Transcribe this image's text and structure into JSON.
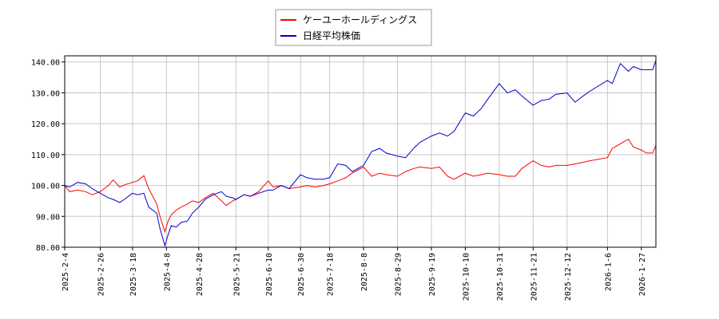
{
  "chart_data": {
    "type": "line",
    "title": "",
    "xlabel": "",
    "ylabel": "",
    "ylim": [
      80,
      142
    ],
    "grid": true,
    "legend_position": "top-center",
    "x_tick_labels": [
      "2025-2-4",
      "2025-2-26",
      "2025-3-18",
      "2025-4-8",
      "2025-4-28",
      "2025-5-21",
      "2025-6-10",
      "2025-6-30",
      "2025-7-18",
      "2025-8-8",
      "2025-8-29",
      "2025-9-19",
      "2025-10-10",
      "2025-10-31",
      "2025-11-21",
      "2025-12-12",
      "2026-1-6",
      "2026-1-27"
    ],
    "y_ticks": [
      80,
      90,
      100,
      110,
      120,
      130,
      140
    ],
    "y_tick_labels": [
      "80.00",
      "90.00",
      "100.00",
      "110.00",
      "120.00",
      "130.00",
      "140.00"
    ],
    "series": [
      {
        "name": "ケーユーホールディングス",
        "color": "#ff0000",
        "points": [
          [
            "2025-2-4",
            100.0
          ],
          [
            "2025-2-7",
            98.0
          ],
          [
            "2025-2-12",
            98.5
          ],
          [
            "2025-2-17",
            98.0
          ],
          [
            "2025-2-21",
            97.0
          ],
          [
            "2025-2-26",
            98.0
          ],
          [
            "2025-3-3",
            100.0
          ],
          [
            "2025-3-6",
            101.8
          ],
          [
            "2025-3-10",
            99.5
          ],
          [
            "2025-3-13",
            100.2
          ],
          [
            "2025-3-18",
            101.0
          ],
          [
            "2025-3-21",
            101.5
          ],
          [
            "2025-3-25",
            103.2
          ],
          [
            "2025-3-28",
            99.0
          ],
          [
            "2025-4-2",
            94.0
          ],
          [
            "2025-4-4",
            90.0
          ],
          [
            "2025-4-7",
            85.0
          ],
          [
            "2025-4-9",
            88.5
          ],
          [
            "2025-4-11",
            90.5
          ],
          [
            "2025-4-14",
            92.0
          ],
          [
            "2025-4-17",
            93.0
          ],
          [
            "2025-4-21",
            94.0
          ],
          [
            "2025-4-24",
            95.0
          ],
          [
            "2025-4-28",
            94.5
          ],
          [
            "2025-5-2",
            96.0
          ],
          [
            "2025-5-7",
            97.5
          ],
          [
            "2025-5-12",
            95.0
          ],
          [
            "2025-5-15",
            93.5
          ],
          [
            "2025-5-19",
            95.0
          ],
          [
            "2025-5-21",
            95.5
          ],
          [
            "2025-5-26",
            97.0
          ],
          [
            "2025-5-30",
            96.5
          ],
          [
            "2025-6-4",
            98.0
          ],
          [
            "2025-6-10",
            101.5
          ],
          [
            "2025-6-13",
            99.5
          ],
          [
            "2025-6-18",
            100.0
          ],
          [
            "2025-6-23",
            99.0
          ],
          [
            "2025-6-30",
            99.5
          ],
          [
            "2025-7-4",
            100.0
          ],
          [
            "2025-7-9",
            99.5
          ],
          [
            "2025-7-14",
            100.0
          ],
          [
            "2025-7-18",
            100.5
          ],
          [
            "2025-7-23",
            101.5
          ],
          [
            "2025-7-28",
            102.5
          ],
          [
            "2025-8-1",
            104.0
          ],
          [
            "2025-8-8",
            106.0
          ],
          [
            "2025-8-13",
            103.0
          ],
          [
            "2025-8-18",
            104.0
          ],
          [
            "2025-8-22",
            103.5
          ],
          [
            "2025-8-29",
            103.0
          ],
          [
            "2025-9-3",
            104.5
          ],
          [
            "2025-9-8",
            105.5
          ],
          [
            "2025-9-12",
            106.0
          ],
          [
            "2025-9-19",
            105.5
          ],
          [
            "2025-9-24",
            106.0
          ],
          [
            "2025-9-29",
            103.0
          ],
          [
            "2025-10-3",
            102.0
          ],
          [
            "2025-10-10",
            104.0
          ],
          [
            "2025-10-15",
            103.0
          ],
          [
            "2025-10-20",
            103.5
          ],
          [
            "2025-10-24",
            104.0
          ],
          [
            "2025-10-31",
            103.5
          ],
          [
            "2025-11-5",
            103.0
          ],
          [
            "2025-11-10",
            103.0
          ],
          [
            "2025-11-14",
            105.5
          ],
          [
            "2025-11-21",
            108.0
          ],
          [
            "2025-11-26",
            106.5
          ],
          [
            "2025-12-1",
            106.0
          ],
          [
            "2025-12-5",
            106.5
          ],
          [
            "2025-12-12",
            106.5
          ],
          [
            "2025-12-17",
            107.0
          ],
          [
            "2025-12-22",
            107.5
          ],
          [
            "2025-12-26",
            108.0
          ],
          [
            "2026-1-6",
            109.0
          ],
          [
            "2026-1-9",
            112.0
          ],
          [
            "2026-1-14",
            113.5
          ],
          [
            "2026-1-19",
            115.0
          ],
          [
            "2026-1-22",
            112.5
          ],
          [
            "2026-1-27",
            111.5
          ],
          [
            "2026-1-30",
            110.5
          ],
          [
            "2026-2-3",
            110.5
          ],
          [
            "2026-2-5",
            113.0
          ]
        ]
      },
      {
        "name": "日経平均株価",
        "color": "#0000cc",
        "points": [
          [
            "2025-2-4",
            100.0
          ],
          [
            "2025-2-7",
            99.5
          ],
          [
            "2025-2-12",
            101.0
          ],
          [
            "2025-2-17",
            100.5
          ],
          [
            "2025-2-21",
            99.0
          ],
          [
            "2025-2-26",
            97.5
          ],
          [
            "2025-3-3",
            96.0
          ],
          [
            "2025-3-6",
            95.5
          ],
          [
            "2025-3-10",
            94.5
          ],
          [
            "2025-3-13",
            95.5
          ],
          [
            "2025-3-18",
            97.5
          ],
          [
            "2025-3-21",
            97.0
          ],
          [
            "2025-3-25",
            97.5
          ],
          [
            "2025-3-28",
            93.0
          ],
          [
            "2025-4-2",
            91.0
          ],
          [
            "2025-4-4",
            86.0
          ],
          [
            "2025-4-7",
            80.5
          ],
          [
            "2025-4-9",
            84.0
          ],
          [
            "2025-4-11",
            87.0
          ],
          [
            "2025-4-14",
            86.5
          ],
          [
            "2025-4-17",
            88.0
          ],
          [
            "2025-4-21",
            88.5
          ],
          [
            "2025-4-24",
            91.0
          ],
          [
            "2025-4-28",
            93.0
          ],
          [
            "2025-5-2",
            95.5
          ],
          [
            "2025-5-7",
            97.0
          ],
          [
            "2025-5-12",
            98.0
          ],
          [
            "2025-5-15",
            96.5
          ],
          [
            "2025-5-19",
            96.0
          ],
          [
            "2025-5-21",
            95.5
          ],
          [
            "2025-5-26",
            97.0
          ],
          [
            "2025-5-30",
            96.5
          ],
          [
            "2025-6-4",
            97.5
          ],
          [
            "2025-6-10",
            98.5
          ],
          [
            "2025-6-13",
            98.5
          ],
          [
            "2025-6-18",
            100.0
          ],
          [
            "2025-6-23",
            99.0
          ],
          [
            "2025-6-30",
            103.5
          ],
          [
            "2025-7-4",
            102.5
          ],
          [
            "2025-7-9",
            102.0
          ],
          [
            "2025-7-14",
            102.0
          ],
          [
            "2025-7-18",
            102.5
          ],
          [
            "2025-7-23",
            107.0
          ],
          [
            "2025-7-28",
            106.5
          ],
          [
            "2025-8-1",
            104.5
          ],
          [
            "2025-8-8",
            106.5
          ],
          [
            "2025-8-13",
            111.0
          ],
          [
            "2025-8-18",
            112.0
          ],
          [
            "2025-8-22",
            110.5
          ],
          [
            "2025-8-29",
            109.5
          ],
          [
            "2025-9-3",
            109.0
          ],
          [
            "2025-9-8",
            112.0
          ],
          [
            "2025-9-12",
            114.0
          ],
          [
            "2025-9-19",
            116.0
          ],
          [
            "2025-9-24",
            117.0
          ],
          [
            "2025-9-29",
            116.0
          ],
          [
            "2025-10-3",
            117.5
          ],
          [
            "2025-10-10",
            123.5
          ],
          [
            "2025-10-15",
            122.5
          ],
          [
            "2025-10-20",
            125.0
          ],
          [
            "2025-10-24",
            128.0
          ],
          [
            "2025-10-31",
            133.0
          ],
          [
            "2025-11-5",
            130.0
          ],
          [
            "2025-11-10",
            131.0
          ],
          [
            "2025-11-14",
            129.0
          ],
          [
            "2025-11-21",
            126.0
          ],
          [
            "2025-11-26",
            127.5
          ],
          [
            "2025-12-1",
            128.0
          ],
          [
            "2025-12-5",
            129.5
          ],
          [
            "2025-12-12",
            130.0
          ],
          [
            "2025-12-17",
            127.0
          ],
          [
            "2025-12-22",
            129.0
          ],
          [
            "2025-12-26",
            130.5
          ],
          [
            "2026-1-6",
            134.0
          ],
          [
            "2026-1-9",
            133.0
          ],
          [
            "2026-1-14",
            139.5
          ],
          [
            "2026-1-19",
            137.0
          ],
          [
            "2026-1-22",
            138.5
          ],
          [
            "2026-1-27",
            137.5
          ],
          [
            "2026-1-30",
            137.5
          ],
          [
            "2026-2-3",
            137.5
          ],
          [
            "2026-2-5",
            140.5
          ]
        ]
      }
    ]
  }
}
